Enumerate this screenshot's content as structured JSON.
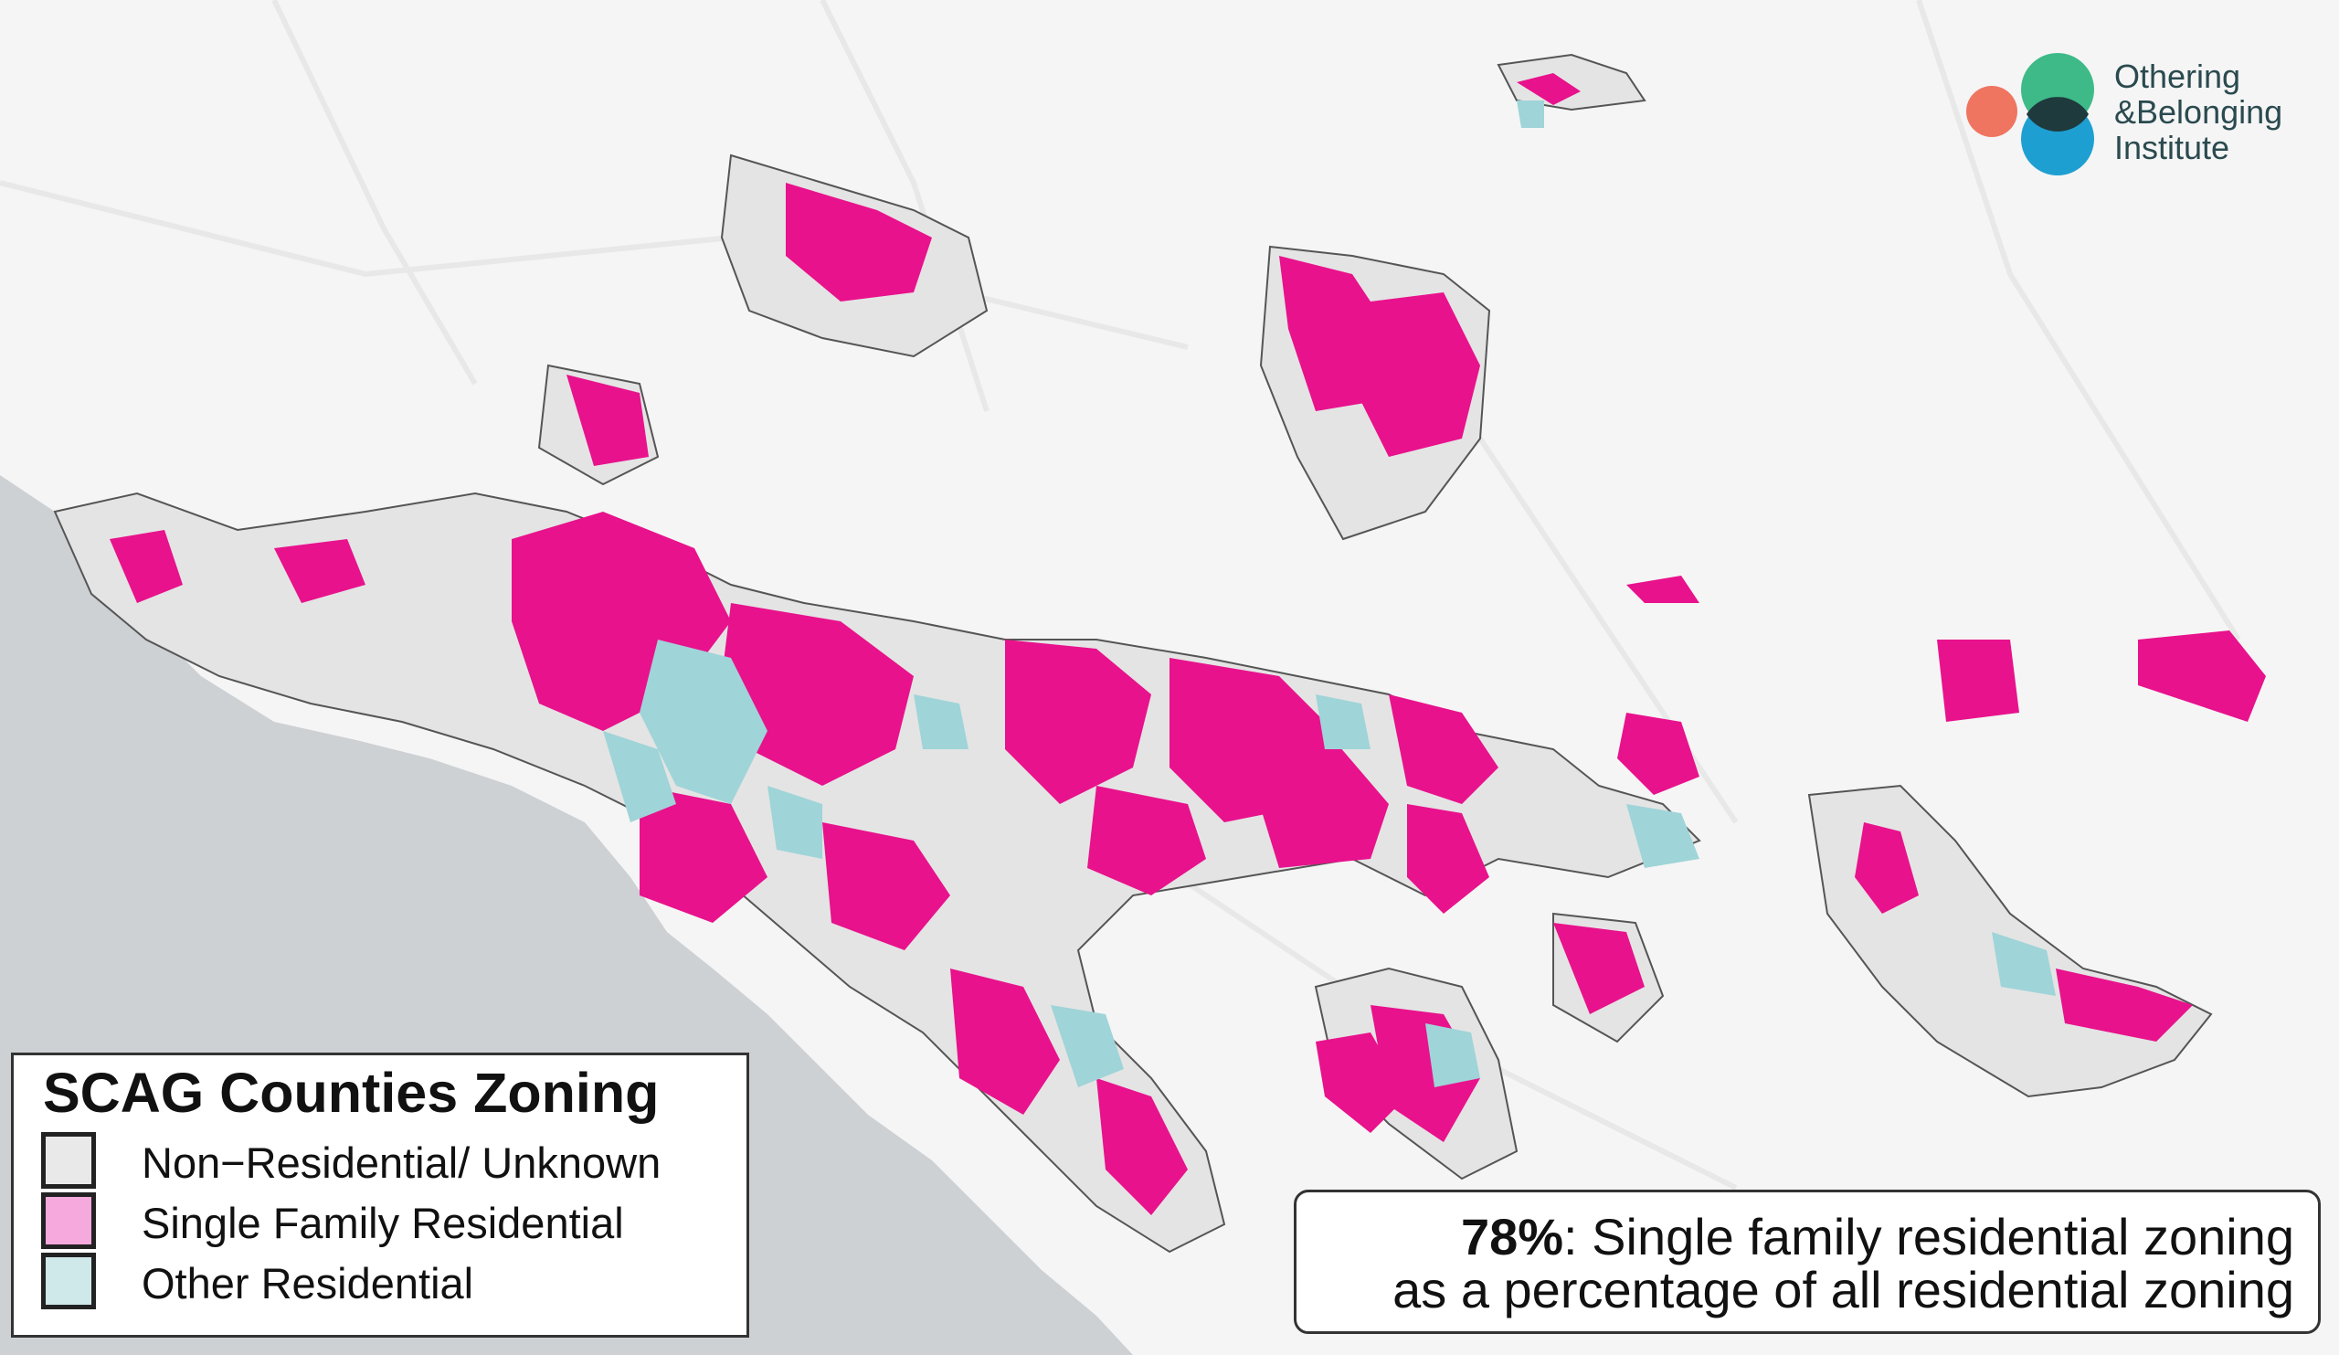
{
  "legend": {
    "title": "SCAG Counties Zoning",
    "items": [
      {
        "label": "Non−Residential/ Unknown",
        "color": "#e9e9e9"
      },
      {
        "label": "Single Family Residential",
        "color": "#f5a9dd"
      },
      {
        "label": "Other Residential",
        "color": "#cfe8ea"
      }
    ]
  },
  "callout": {
    "percent": "78%",
    "line1_rest": ": Single family residential zoning",
    "line2": "as a percentage of all residential zoning"
  },
  "logo": {
    "line1": "Othering",
    "line2": "&Belonging",
    "line3": "Institute",
    "colors": {
      "coral": "#ef7560",
      "green": "#3dba88",
      "blue": "#1e9fd1",
      "dark": "#1f3a3d"
    }
  },
  "colors": {
    "single_family": "#e8128c",
    "other_residential": "#9fd4d8",
    "non_residential": "#e4e4e4",
    "ocean": "#cdd1d4",
    "land": "#f5f5f5"
  }
}
